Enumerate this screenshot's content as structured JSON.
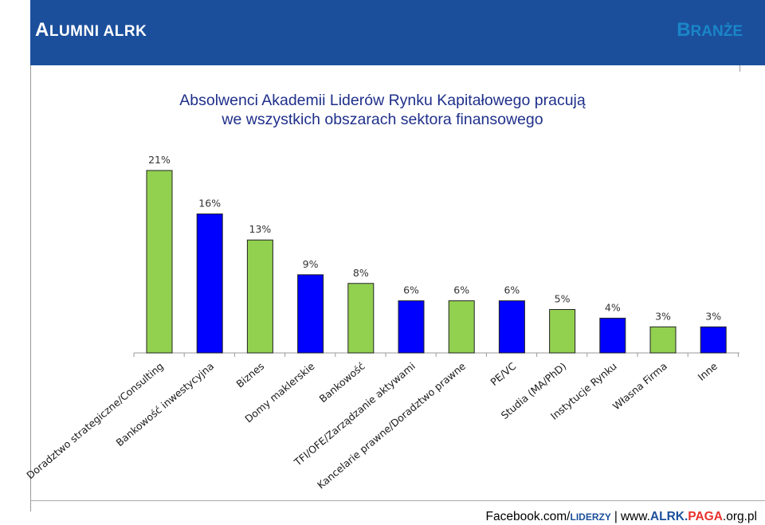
{
  "header": {
    "left_first": "A",
    "left_rest": "LUMNI ALRK",
    "right_first": "B",
    "right_rest": "RANŻE"
  },
  "title": {
    "line1": "Absolwenci Akademii Liderów Rynku Kapitałowego pracują",
    "line2": "we wszystkich obszarach sektora finansowego"
  },
  "footer": {
    "part1": "Facebook.com/",
    "liderzy": "LIDERZY",
    "separator": "|",
    "www": "www.",
    "alrk": "ALRK.",
    "paga": "PAGA",
    "rest": ".org.pl"
  },
  "colors": {
    "green": "#92d050",
    "blue": "#0000ff",
    "header_bg": "#1b4f9c"
  },
  "chart_data": {
    "type": "bar",
    "title": "Absolwenci Akademii Liderów Rynku Kapitałowego pracują we wszystkich obszarach sektora finansowego",
    "categories": [
      "Doradztwo strategiczne/Consulting",
      "Bankowość inwestycyjna",
      "Biznes",
      "Domy maklerskie",
      "Bankowość",
      "TFI/OFE/Zarządzanie aktywami",
      "Kancelarie prawne/Doradztwo prawne",
      "PE/VC",
      "Studia (MA/PhD)",
      "Instytucje Rynku",
      "Własna Firma",
      "Inne"
    ],
    "values": [
      21,
      16,
      13,
      9,
      8,
      6,
      6,
      6,
      5,
      4,
      3,
      3
    ],
    "labels": [
      "21%",
      "16%",
      "13%",
      "9%",
      "8%",
      "6%",
      "6%",
      "6%",
      "5%",
      "4%",
      "3%",
      "3%"
    ],
    "bar_colors": [
      "#92d050",
      "#0000ff",
      "#92d050",
      "#0000ff",
      "#92d050",
      "#0000ff",
      "#92d050",
      "#0000ff",
      "#92d050",
      "#0000ff",
      "#92d050",
      "#0000ff"
    ],
    "ylim": [
      0,
      21
    ],
    "xlabel": "",
    "ylabel": "",
    "grid": false,
    "legend": "none"
  }
}
